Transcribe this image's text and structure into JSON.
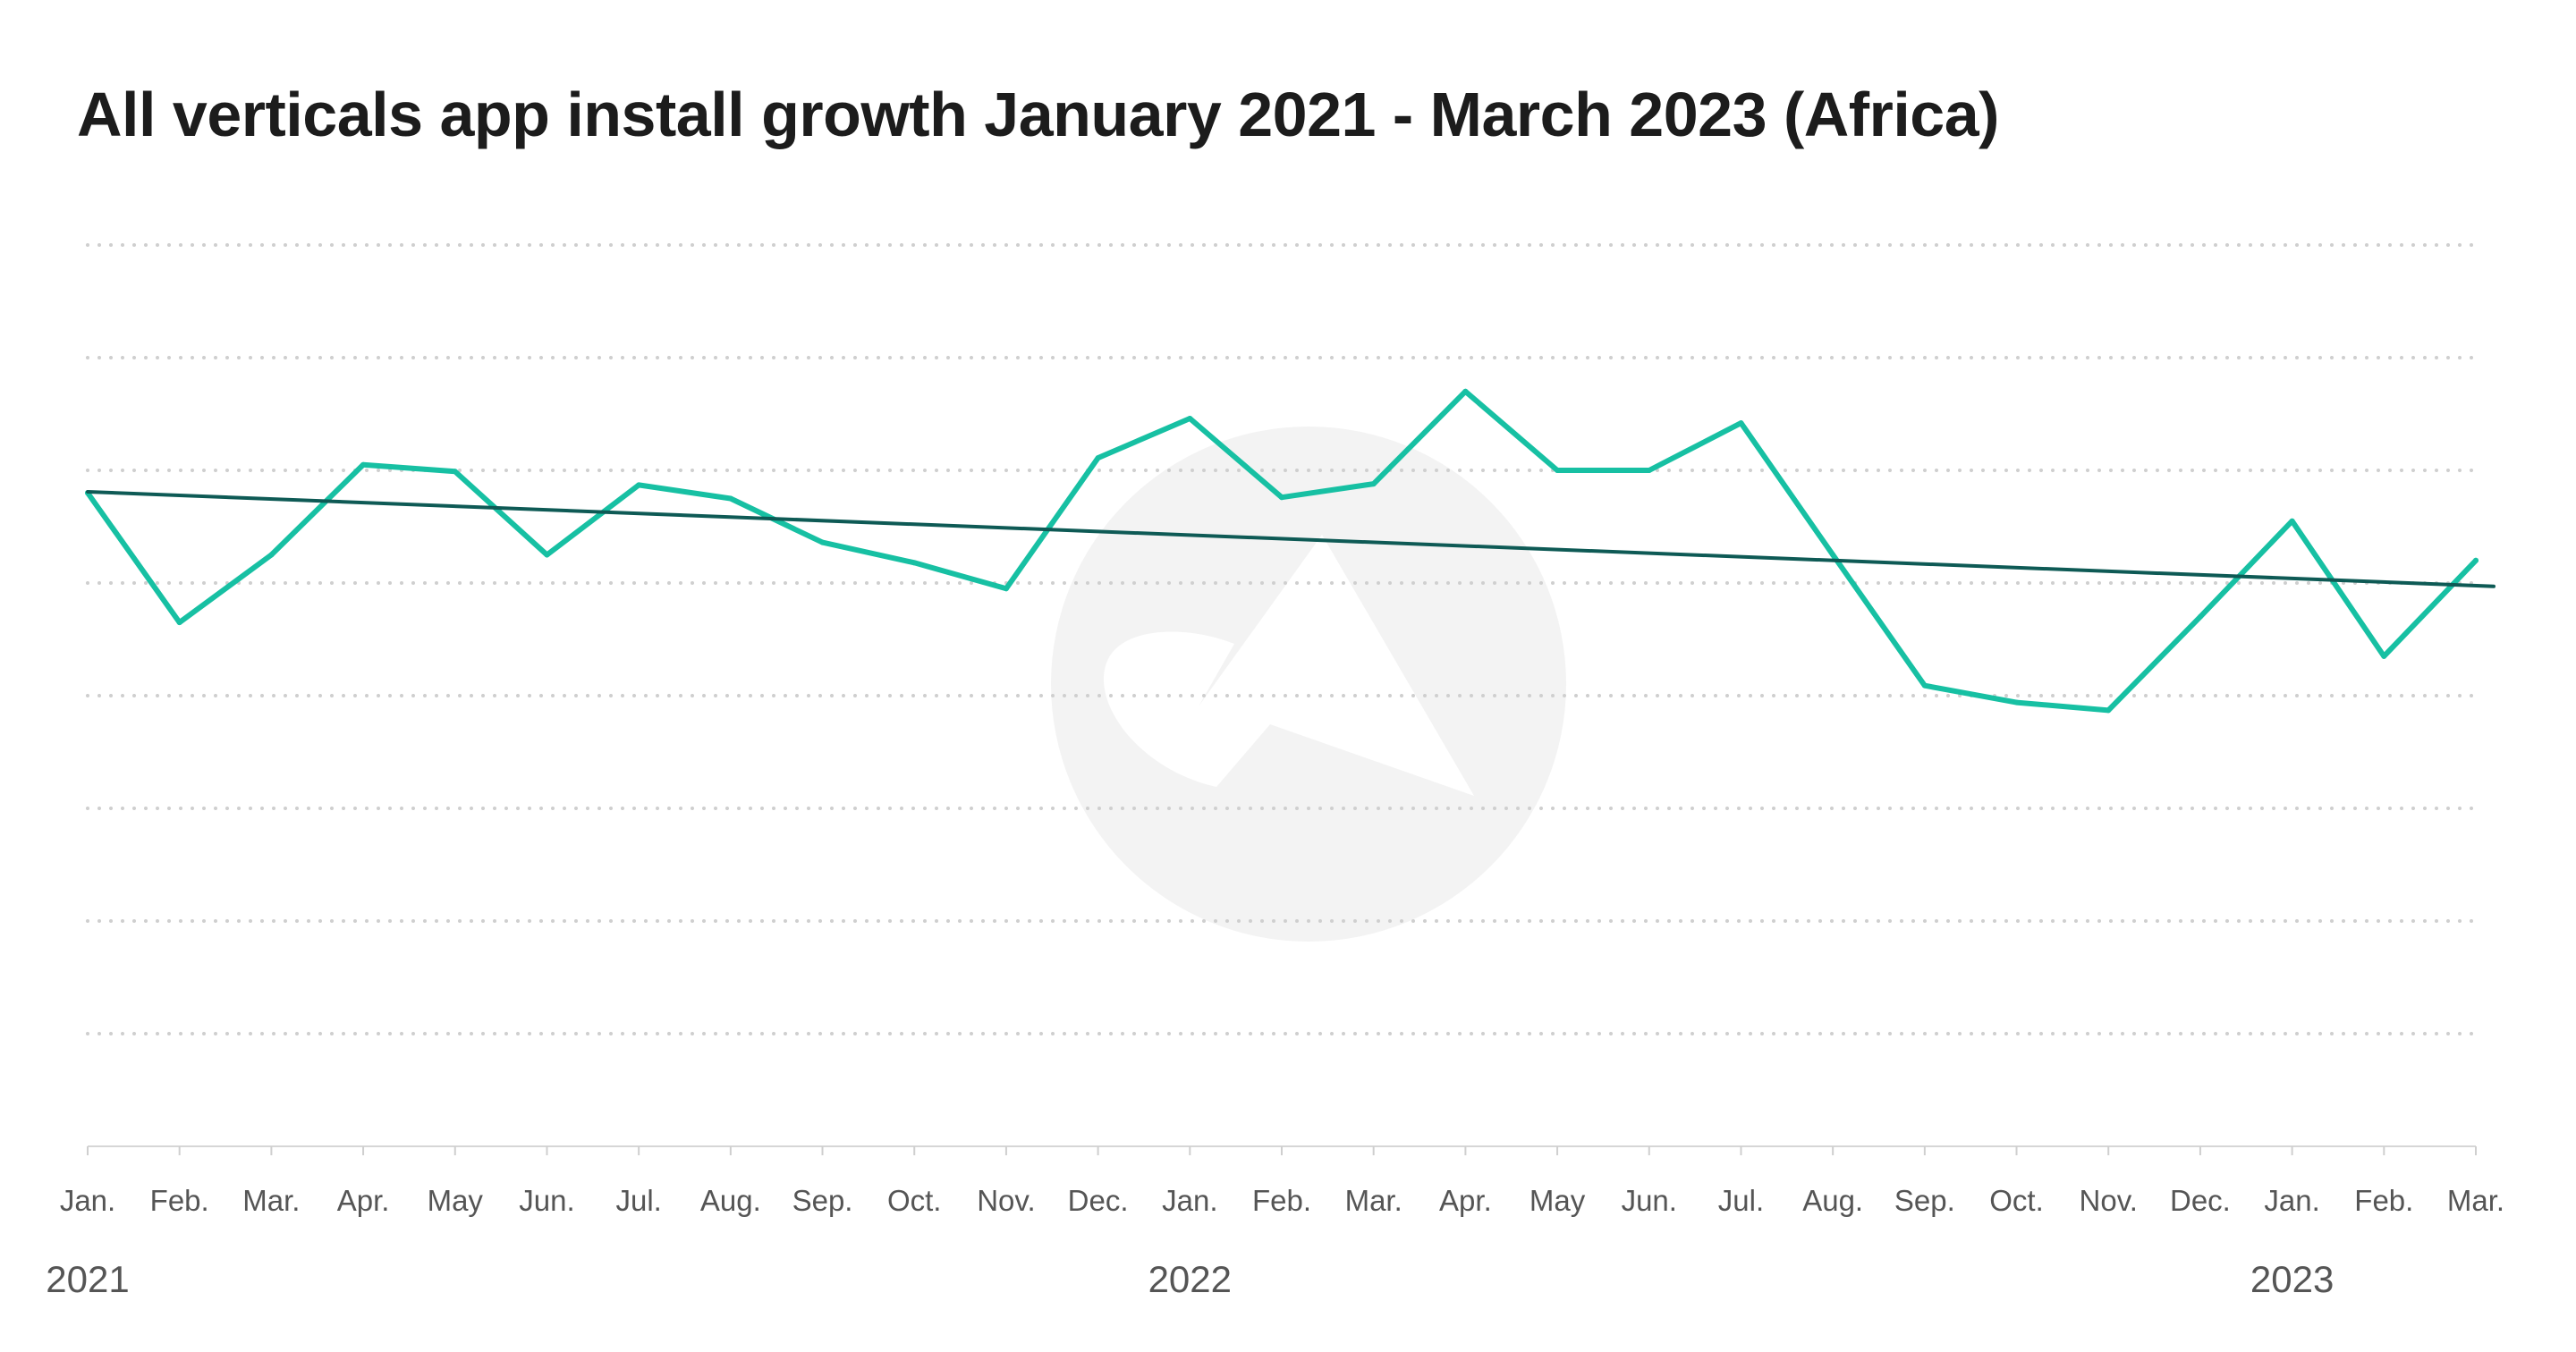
{
  "chart_data": {
    "type": "line",
    "title": "All verticals app install growth January 2021 - March 2023 (Africa)",
    "xlabel": "",
    "ylabel": "",
    "grid": true,
    "y_axis_labels_shown": false,
    "categories": [
      "Jan.",
      "Feb.",
      "Mar.",
      "Apr.",
      "May",
      "Jun.",
      "Jul.",
      "Aug.",
      "Sep.",
      "Oct.",
      "Nov.",
      "Dec.",
      "Jan.",
      "Feb.",
      "Mar.",
      "Apr.",
      "May",
      "Jun.",
      "Jul.",
      "Aug.",
      "Sep.",
      "Oct.",
      "Nov.",
      "Dec.",
      "Jan.",
      "Feb.",
      "Mar."
    ],
    "year_labels": [
      {
        "label": "2021",
        "index": 0
      },
      {
        "label": "2022",
        "index": 12
      },
      {
        "label": "2023",
        "index": 24
      }
    ],
    "ylim": [
      0,
      8
    ],
    "series": [
      {
        "name": "",
        "color": "#17c0a3",
        "values": [
          5.8,
          4.65,
          5.25,
          6.05,
          5.99,
          5.25,
          5.87,
          5.75,
          5.36,
          5.18,
          4.95,
          6.11,
          6.46,
          5.76,
          5.88,
          6.7,
          6.0,
          6.0,
          6.42,
          5.25,
          4.09,
          3.94,
          3.87,
          4.7,
          5.55,
          4.35,
          5.2
        ]
      }
    ],
    "trendline": {
      "color": "#0e5a55",
      "start": 5.81,
      "end": 4.97
    },
    "watermark": "adjust-logo",
    "colors": {
      "line": "#17c0a3",
      "trend": "#0e5a55",
      "grid": "#cfcfcf",
      "watermark": "#f3f3f3"
    }
  }
}
